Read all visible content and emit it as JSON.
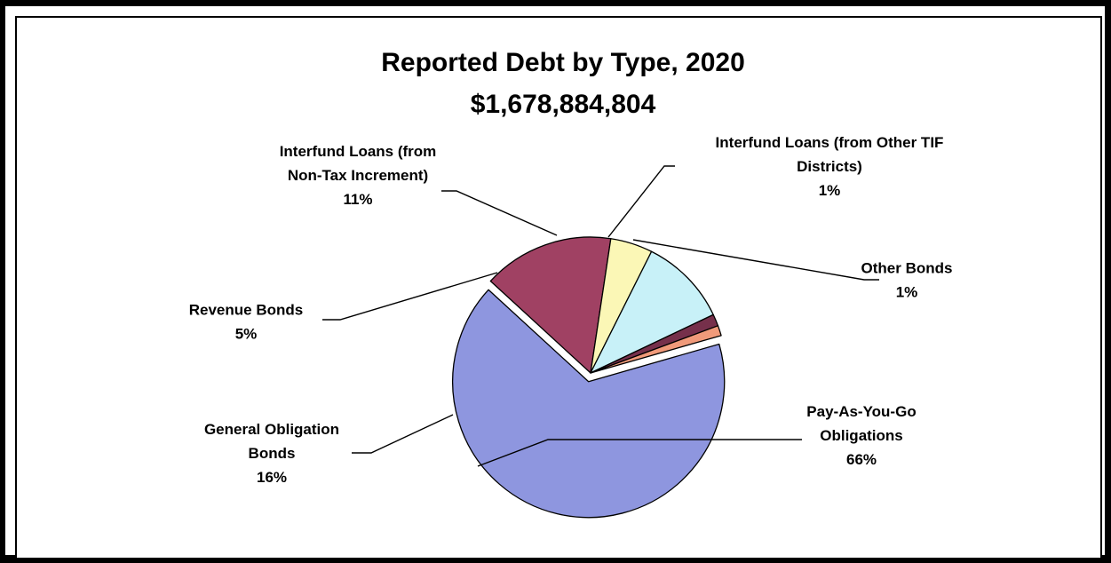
{
  "chart_data": {
    "type": "pie",
    "title": "Reported Debt by Type, 2020",
    "subtitle": "$1,678,884,804",
    "slices": [
      {
        "label_lines": [
          "Pay-As-You-Go",
          "Obligations"
        ],
        "percent_label": "66%",
        "value": 66,
        "color": "#8e96df"
      },
      {
        "label_lines": [
          "General Obligation",
          "Bonds"
        ],
        "percent_label": "16%",
        "value": 15.5,
        "color": "#a04163"
      },
      {
        "label_lines": [
          "Revenue Bonds"
        ],
        "percent_label": "5%",
        "value": 5,
        "color": "#fbf7b6"
      },
      {
        "label_lines": [
          "Interfund Loans (from",
          "Non-Tax Increment)"
        ],
        "percent_label": "11%",
        "value": 10.5,
        "color": "#c8f1f8"
      },
      {
        "label_lines": [
          "Interfund Loans (from Other TIF",
          "Districts)"
        ],
        "percent_label": "1%",
        "value": 1.4,
        "color": "#76304b"
      },
      {
        "label_lines": [
          "Other Bonds"
        ],
        "percent_label": "1%",
        "value": 1.2,
        "color": "#f09a7a"
      }
    ],
    "legend": "none"
  }
}
